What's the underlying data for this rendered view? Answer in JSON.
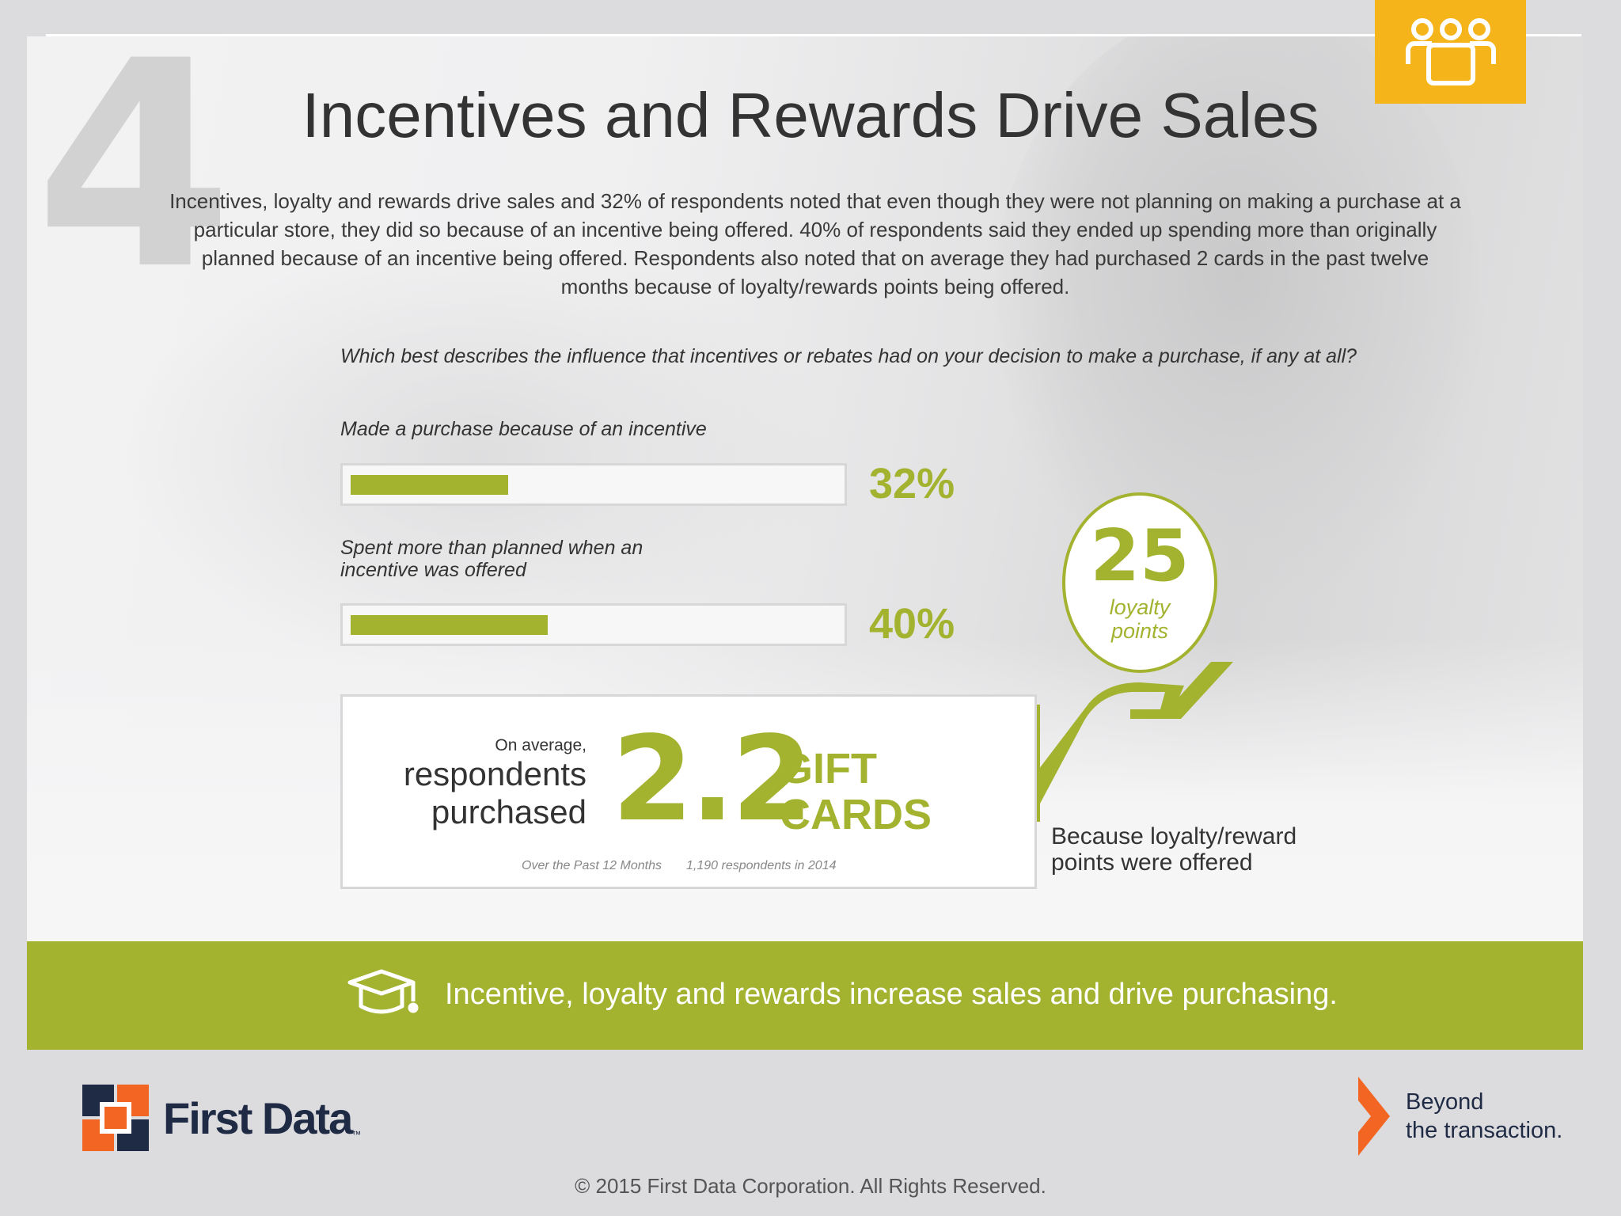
{
  "slide": {
    "section_number": "4",
    "title": "Incentives and Rewards Drive Sales",
    "intro": "Incentives, loyalty and rewards drive sales and 32% of respondents noted that even though they were not planning on making a purchase at a particular store, they did so because of an incentive being offered. 40% of respondents said they ended up spending more than originally planned because of an incentive being offered.  Respondents also noted that on average they had purchased 2 cards in the past twelve months because of loyalty/rewards points being offered.",
    "question": "Which best describes the influence that incentives or rebates had on your decision to make a purchase, if any at all?",
    "accent_color": "#a3b330",
    "icon_tab_color": "#f4b41a",
    "icon_tab_icon": "people-group-icon"
  },
  "bars": [
    {
      "label_line1": "Made a purchase because of an incentive",
      "label_line2": "",
      "value": 32,
      "value_label": "32%"
    },
    {
      "label_line1": "Spent more than planned when an",
      "label_line2": "incentive was offered",
      "value": 40,
      "value_label": "40%"
    }
  ],
  "loyalty": {
    "number": "25",
    "line1": "loyalty",
    "line2": "points",
    "caption_line1": "Because loyalty/reward",
    "caption_line2": "points were offered"
  },
  "stat": {
    "on_average": "On average,",
    "line1": "respondents",
    "line2": "purchased",
    "value": "2.2",
    "unit_line1": "GIFT",
    "unit_line2": "CARDS",
    "footnote1": "Over the Past 12 Months",
    "footnote2": "1,190 respondents in 2014"
  },
  "banner": {
    "icon": "graduation-cap-icon",
    "message": "Incentive, loyalty and rewards increase sales and drive purchasing."
  },
  "footer": {
    "logo_text": "First Data",
    "logo_tm": "™",
    "tagline_line1": "Beyond",
    "tagline_line2": "the transaction.",
    "copyright": "© 2015 First Data Corporation. All Rights Reserved."
  }
}
